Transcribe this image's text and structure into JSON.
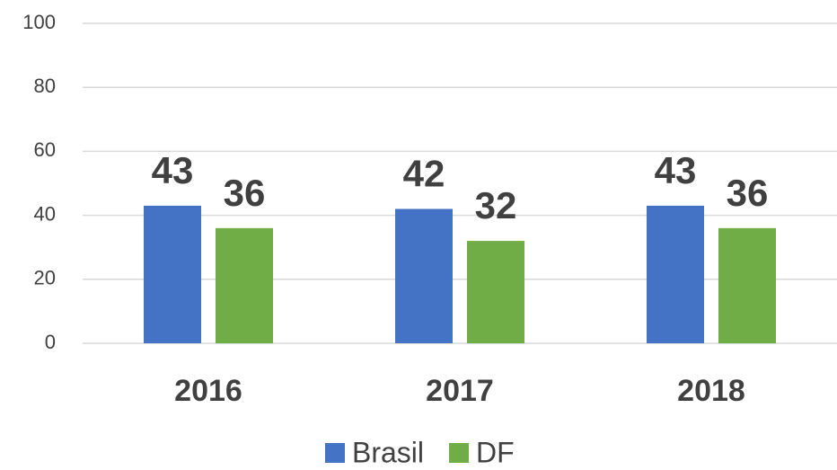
{
  "chart_data": {
    "type": "bar",
    "categories": [
      "2016",
      "2017",
      "2018"
    ],
    "series": [
      {
        "name": "Brasil",
        "color": "#4472c4",
        "values": [
          43,
          42,
          43
        ]
      },
      {
        "name": "DF",
        "color": "#70ad47",
        "values": [
          36,
          32,
          36
        ]
      }
    ],
    "ylim": [
      0,
      100
    ],
    "yticks": [
      0,
      20,
      40,
      60,
      80,
      100
    ],
    "grid": true,
    "legend": "bottom"
  }
}
